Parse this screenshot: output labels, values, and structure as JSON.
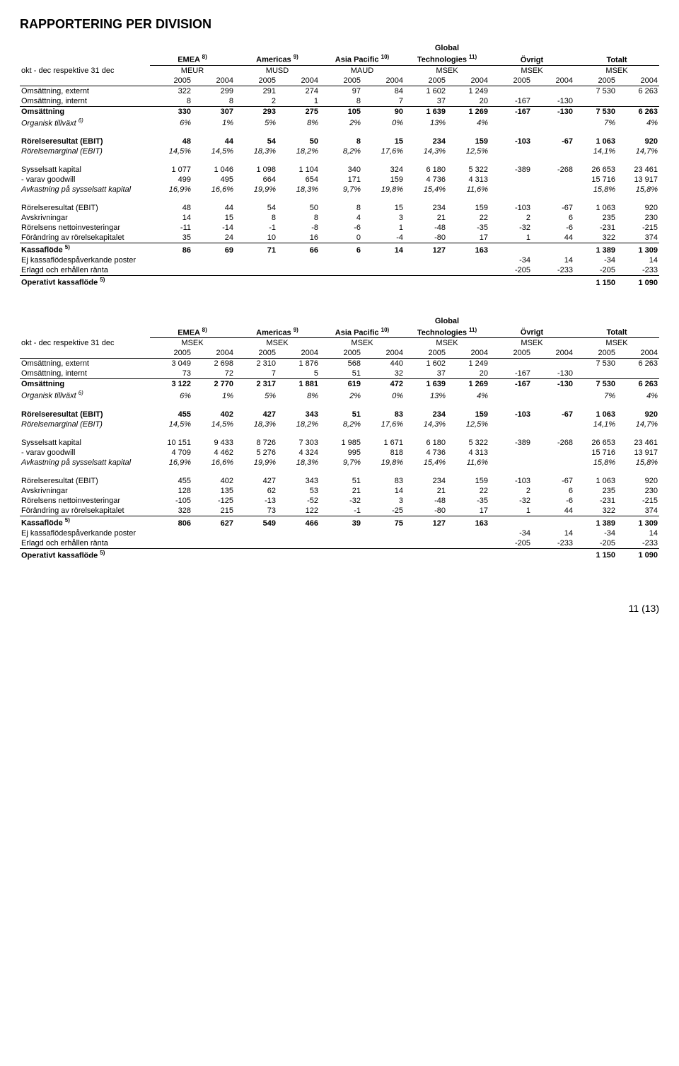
{
  "title": "RAPPORTERING PER DIVISION",
  "groups": [
    {
      "name": "EMEA",
      "sup": "8)"
    },
    {
      "name": "Americas",
      "sup": "9)"
    },
    {
      "name": "Asia Pacific",
      "sup": "10)"
    },
    {
      "name": "Global Technologies",
      "sup": "11)"
    },
    {
      "name": "Övrigt",
      "sup": ""
    },
    {
      "name": "Totalt",
      "sup": ""
    }
  ],
  "rowHeader": "okt - dec respektive 31 dec",
  "years": [
    "2005",
    "2004"
  ],
  "tableA": {
    "units": [
      "MEUR",
      "MUSD",
      "MAUD",
      "MSEK",
      "MSEK",
      "MSEK"
    ],
    "rows": [
      {
        "label": "Omsättning, externt",
        "vals": [
          "322",
          "299",
          "291",
          "274",
          "97",
          "84",
          "1 602",
          "1 249",
          "",
          "",
          "7 530",
          "6 263"
        ]
      },
      {
        "label": "Omsättning, internt",
        "vals": [
          "8",
          "8",
          "2",
          "1",
          "8",
          "7",
          "37",
          "20",
          "-167",
          "-130",
          "",
          ""
        ],
        "underline": true
      },
      {
        "label": "Omsättning",
        "vals": [
          "330",
          "307",
          "293",
          "275",
          "105",
          "90",
          "1 639",
          "1 269",
          "-167",
          "-130",
          "7 530",
          "6 263"
        ],
        "bold": true
      },
      {
        "label": "Organisk tillväxt",
        "sup": "6)",
        "vals": [
          "6%",
          "1%",
          "5%",
          "8%",
          "2%",
          "0%",
          "13%",
          "4%",
          "",
          "",
          "7%",
          "4%"
        ],
        "italic": true,
        "underlineAfter": true
      },
      {
        "gap": true
      },
      {
        "label": "Rörelseresultat (EBIT)",
        "vals": [
          "48",
          "44",
          "54",
          "50",
          "8",
          "15",
          "234",
          "159",
          "-103",
          "-67",
          "1 063",
          "920"
        ],
        "bold": true
      },
      {
        "label": "Rörelsemarginal (EBIT)",
        "vals": [
          "14,5%",
          "14,5%",
          "18,3%",
          "18,2%",
          "8,2%",
          "17,6%",
          "14,3%",
          "12,5%",
          "",
          "",
          "14,1%",
          "14,7%"
        ],
        "italic": true,
        "underlineAfter": true
      },
      {
        "gap": true
      },
      {
        "label": "Sysselsatt kapital",
        "vals": [
          "1 077",
          "1 046",
          "1 098",
          "1 104",
          "340",
          "324",
          "6 180",
          "5 322",
          "-389",
          "-268",
          "26 653",
          "23 461"
        ]
      },
      {
        "label": "- varav goodwill",
        "vals": [
          "499",
          "495",
          "664",
          "654",
          "171",
          "159",
          "4 736",
          "4 313",
          "",
          "",
          "15 716",
          "13 917"
        ]
      },
      {
        "label": "Avkastning på sysselsatt kapital",
        "vals": [
          "16,9%",
          "16,6%",
          "19,9%",
          "18,3%",
          "9,7%",
          "19,8%",
          "15,4%",
          "11,6%",
          "",
          "",
          "15,8%",
          "15,8%"
        ],
        "italic": true,
        "underlineAfter": true
      },
      {
        "gap": true
      },
      {
        "label": "Rörelseresultat (EBIT)",
        "vals": [
          "48",
          "44",
          "54",
          "50",
          "8",
          "15",
          "234",
          "159",
          "-103",
          "-67",
          "1 063",
          "920"
        ]
      },
      {
        "label": "Avskrivningar",
        "vals": [
          "14",
          "15",
          "8",
          "8",
          "4",
          "3",
          "21",
          "22",
          "2",
          "6",
          "235",
          "230"
        ]
      },
      {
        "label": "Rörelsens nettoinvesteringar",
        "vals": [
          "-11",
          "-14",
          "-1",
          "-8",
          "-6",
          "1",
          "-48",
          "-35",
          "-32",
          "-6",
          "-231",
          "-215"
        ]
      },
      {
        "label": "Förändring av rörelsekapitalet",
        "vals": [
          "35",
          "24",
          "10",
          "16",
          "0",
          "-4",
          "-80",
          "17",
          "1",
          "44",
          "322",
          "374"
        ],
        "underline": true
      },
      {
        "label": "Kassaflöde",
        "sup": "5)",
        "vals": [
          "86",
          "69",
          "71",
          "66",
          "6",
          "14",
          "127",
          "163",
          "",
          "",
          "1 389",
          "1 309"
        ],
        "bold": true
      },
      {
        "label": "Ej kassaflödespåverkande poster",
        "vals": [
          "",
          "",
          "",
          "",
          "",
          "",
          "",
          "",
          "-34",
          "14",
          "-34",
          "14"
        ]
      },
      {
        "label": "Erlagd och erhållen ränta",
        "vals": [
          "",
          "",
          "",
          "",
          "",
          "",
          "",
          "",
          "-205",
          "-233",
          "-205",
          "-233"
        ],
        "underline": true
      },
      {
        "label": "Operativt kassaflöde",
        "sup": "5)",
        "vals": [
          "",
          "",
          "",
          "",
          "",
          "",
          "",
          "",
          "",
          "",
          "1 150",
          "1 090"
        ],
        "bold": true,
        "underlineAfter": true
      }
    ]
  },
  "tableB": {
    "units": [
      "MSEK",
      "MSEK",
      "MSEK",
      "MSEK",
      "MSEK",
      "MSEK"
    ],
    "rows": [
      {
        "label": "Omsättning, externt",
        "vals": [
          "3 049",
          "2 698",
          "2 310",
          "1 876",
          "568",
          "440",
          "1 602",
          "1 249",
          "",
          "",
          "7 530",
          "6 263"
        ]
      },
      {
        "label": "Omsättning, internt",
        "vals": [
          "73",
          "72",
          "7",
          "5",
          "51",
          "32",
          "37",
          "20",
          "-167",
          "-130",
          "",
          ""
        ],
        "underline": true
      },
      {
        "label": "Omsättning",
        "vals": [
          "3 122",
          "2 770",
          "2 317",
          "1 881",
          "619",
          "472",
          "1 639",
          "1 269",
          "-167",
          "-130",
          "7 530",
          "6 263"
        ],
        "bold": true
      },
      {
        "label": "Organisk tillväxt",
        "sup": "6)",
        "vals": [
          "6%",
          "1%",
          "5%",
          "8%",
          "2%",
          "0%",
          "13%",
          "4%",
          "",
          "",
          "7%",
          "4%"
        ],
        "italic": true,
        "underlineAfter": true
      },
      {
        "gap": true
      },
      {
        "label": "Rörelseresultat (EBIT)",
        "vals": [
          "455",
          "402",
          "427",
          "343",
          "51",
          "83",
          "234",
          "159",
          "-103",
          "-67",
          "1 063",
          "920"
        ],
        "bold": true
      },
      {
        "label": "Rörelsemarginal (EBIT)",
        "vals": [
          "14,5%",
          "14,5%",
          "18,3%",
          "18,2%",
          "8,2%",
          "17,6%",
          "14,3%",
          "12,5%",
          "",
          "",
          "14,1%",
          "14,7%"
        ],
        "italic": true,
        "underlineAfter": true
      },
      {
        "gap": true
      },
      {
        "label": "Sysselsatt kapital",
        "vals": [
          "10 151",
          "9 433",
          "8 726",
          "7 303",
          "1 985",
          "1 671",
          "6 180",
          "5 322",
          "-389",
          "-268",
          "26 653",
          "23 461"
        ]
      },
      {
        "label": "- varav goodwill",
        "vals": [
          "4 709",
          "4 462",
          "5 276",
          "4 324",
          "995",
          "818",
          "4 736",
          "4 313",
          "",
          "",
          "15 716",
          "13 917"
        ]
      },
      {
        "label": "Avkastning på sysselsatt kapital",
        "vals": [
          "16,9%",
          "16,6%",
          "19,9%",
          "18,3%",
          "9,7%",
          "19,8%",
          "15,4%",
          "11,6%",
          "",
          "",
          "15,8%",
          "15,8%"
        ],
        "italic": true,
        "underlineAfter": true
      },
      {
        "gap": true
      },
      {
        "label": "Rörelseresultat (EBIT)",
        "vals": [
          "455",
          "402",
          "427",
          "343",
          "51",
          "83",
          "234",
          "159",
          "-103",
          "-67",
          "1 063",
          "920"
        ]
      },
      {
        "label": "Avskrivningar",
        "vals": [
          "128",
          "135",
          "62",
          "53",
          "21",
          "14",
          "21",
          "22",
          "2",
          "6",
          "235",
          "230"
        ]
      },
      {
        "label": "Rörelsens nettoinvesteringar",
        "vals": [
          "-105",
          "-125",
          "-13",
          "-52",
          "-32",
          "3",
          "-48",
          "-35",
          "-32",
          "-6",
          "-231",
          "-215"
        ]
      },
      {
        "label": "Förändring av rörelsekapitalet",
        "vals": [
          "328",
          "215",
          "73",
          "122",
          "-1",
          "-25",
          "-80",
          "17",
          "1",
          "44",
          "322",
          "374"
        ],
        "underline": true
      },
      {
        "label": "Kassaflöde",
        "sup": "5)",
        "vals": [
          "806",
          "627",
          "549",
          "466",
          "39",
          "75",
          "127",
          "163",
          "",
          "",
          "1 389",
          "1 309"
        ],
        "bold": true
      },
      {
        "label": "Ej kassaflödespåverkande poster",
        "vals": [
          "",
          "",
          "",
          "",
          "",
          "",
          "",
          "",
          "-34",
          "14",
          "-34",
          "14"
        ]
      },
      {
        "label": "Erlagd och erhållen ränta",
        "vals": [
          "",
          "",
          "",
          "",
          "",
          "",
          "",
          "",
          "-205",
          "-233",
          "-205",
          "-233"
        ],
        "underline": true
      },
      {
        "label": "Operativt kassaflöde",
        "sup": "5)",
        "vals": [
          "",
          "",
          "",
          "",
          "",
          "",
          "",
          "",
          "",
          "",
          "1 150",
          "1 090"
        ],
        "bold": true,
        "underlineAfter": true
      }
    ]
  },
  "pageNum": "11 (13)"
}
